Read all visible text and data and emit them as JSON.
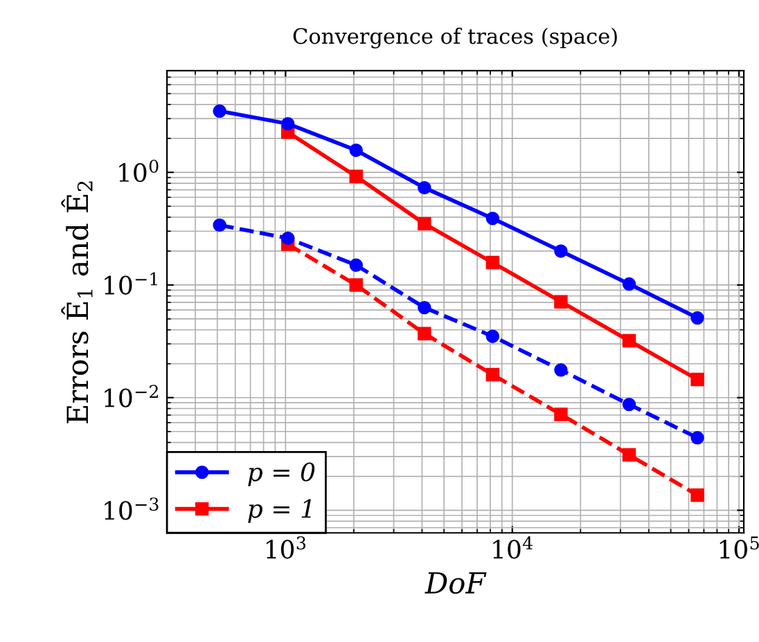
{
  "chart_data": {
    "type": "line",
    "title": "Convergence of traces (space)",
    "xlabel": "DoF",
    "ylabel": "Errors Ê$_{1}$ and Ê$_{2}$",
    "log": "xy",
    "grid": true,
    "legend": "bottom left",
    "xlim": [
      300,
      105000
    ],
    "ylim": [
      0.00063,
      8
    ],
    "xticks": [
      {
        "value": 1000,
        "label": "10$^{3}$"
      },
      {
        "value": 10000,
        "label": "10$^{4}$"
      },
      {
        "value": 100000,
        "label": "10$^{5}$"
      }
    ],
    "yticks": [
      {
        "value": 0.001,
        "label": "10$^{−3}$"
      },
      {
        "value": 0.01,
        "label": "10$^{−2}$"
      },
      {
        "value": 0.1,
        "label": "10$^{−1}$"
      },
      {
        "value": 1,
        "label": "10$^{0}$"
      }
    ],
    "series": [
      {
        "name": "p = 0",
        "color": "#0000ff",
        "marker": "circle",
        "line_style": "solid",
        "x": [
          512,
          1024,
          2048,
          4096,
          8192,
          16384,
          32768,
          65536
        ],
        "values": [
          3.5,
          2.7,
          1.57,
          0.73,
          0.39,
          0.2,
          0.102,
          0.051
        ]
      },
      {
        "name": "p = 1",
        "color": "#ff0000",
        "marker": "square",
        "line_style": "solid",
        "x": [
          1024,
          2048,
          4096,
          8192,
          16384,
          32768,
          65536
        ],
        "values": [
          2.27,
          0.92,
          0.35,
          0.158,
          0.071,
          0.032,
          0.0145
        ]
      },
      {
        "color": "#0000ff",
        "marker": "circle",
        "line_style": "dashed",
        "x": [
          512,
          1024,
          2048,
          4096,
          8192,
          16384,
          32768,
          65536
        ],
        "values": [
          0.34,
          0.26,
          0.15,
          0.063,
          0.035,
          0.0176,
          0.0087,
          0.0044
        ]
      },
      {
        "color": "#ff0000",
        "marker": "square",
        "line_style": "dashed",
        "x": [
          1024,
          2048,
          4096,
          8192,
          16384,
          32768,
          65536
        ],
        "values": [
          0.23,
          0.1,
          0.037,
          0.016,
          0.0071,
          0.0031,
          0.00136
        ]
      }
    ]
  }
}
